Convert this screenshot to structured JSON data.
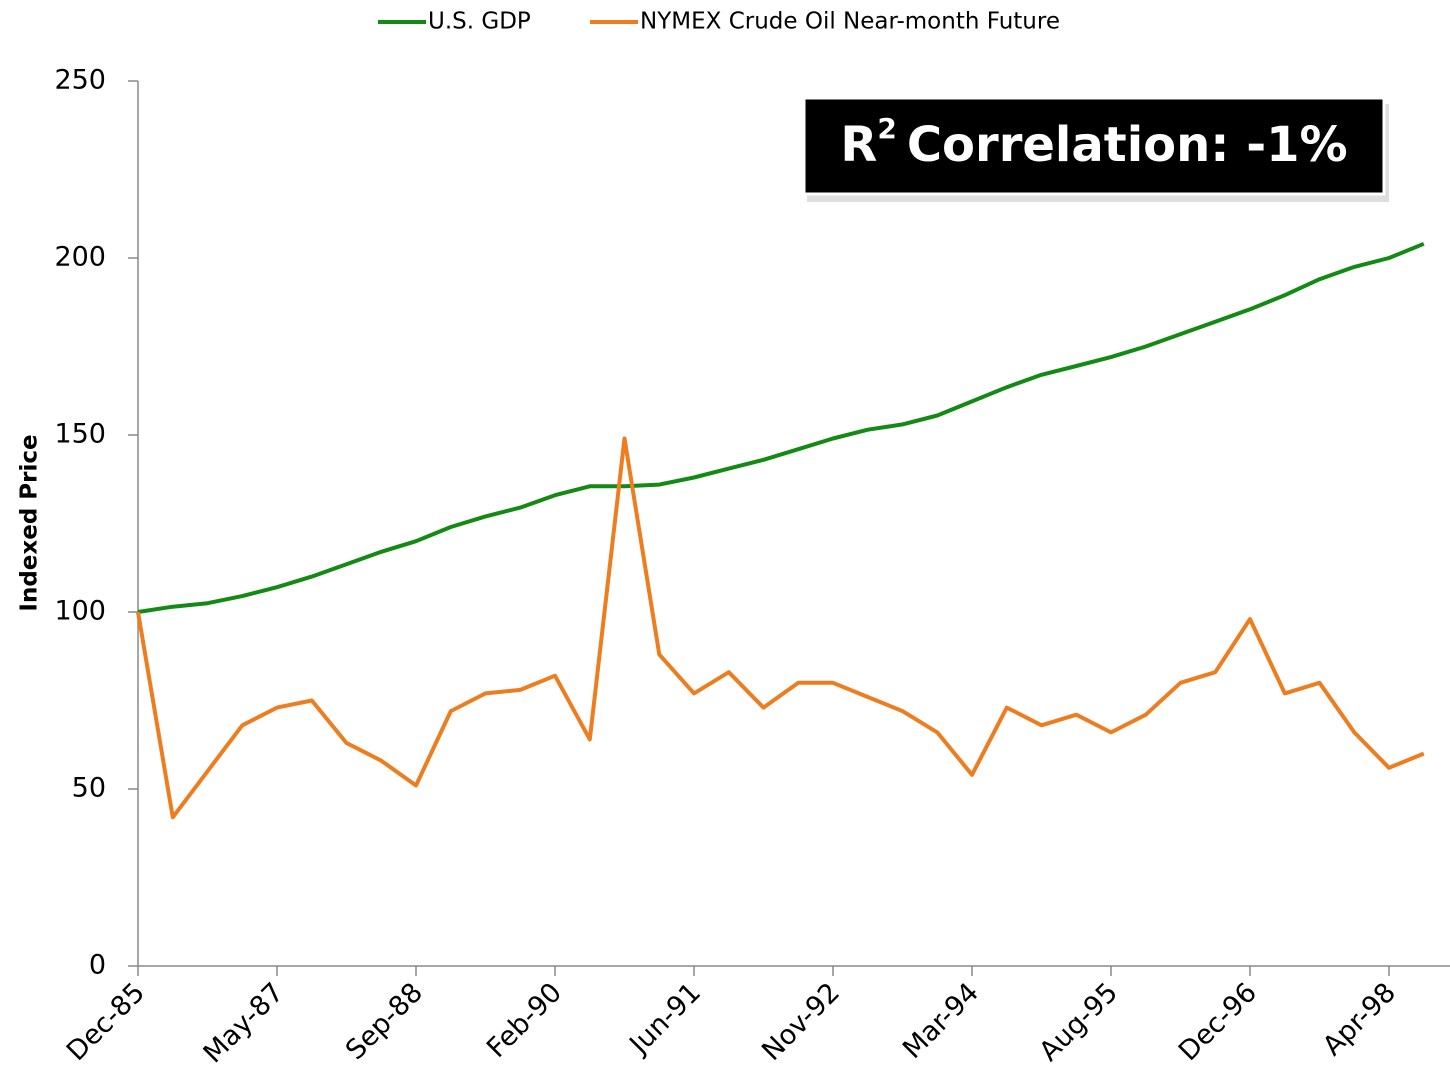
{
  "chart_data": {
    "type": "line",
    "ylabel": "Indexed Price",
    "annotation": {
      "base": "R",
      "sup": "2",
      "text": "Correlation: -1%"
    },
    "categories": [
      "Dec-85",
      null,
      null,
      null,
      "May-87",
      null,
      null,
      null,
      "Sep-88",
      null,
      null,
      null,
      "Feb-90",
      null,
      null,
      null,
      "Jun-91",
      null,
      null,
      null,
      "Nov-92",
      null,
      null,
      null,
      "Mar-94",
      null,
      null,
      null,
      "Aug-95",
      null,
      null,
      null,
      "Dec-96",
      null,
      null,
      null,
      "Apr-98",
      null
    ],
    "series": [
      {
        "name": "U.S. GDP",
        "color": "#138a13",
        "values": [
          100,
          101.5,
          102.5,
          104.5,
          107,
          110,
          113.5,
          117,
          120,
          124,
          127,
          129.5,
          133,
          135.5,
          135.5,
          136,
          138,
          140.5,
          143,
          146,
          149,
          151.5,
          153,
          155.5,
          159.5,
          163.5,
          167,
          169.5,
          172,
          175,
          178.5,
          182,
          185.5,
          189.5,
          194,
          197.5,
          200,
          204
        ]
      },
      {
        "name": "NYMEX Crude Oil Near-month Future",
        "color": "#ed7d1f",
        "values": [
          100,
          42,
          55,
          68,
          73,
          75,
          63,
          58,
          51,
          72,
          77,
          78,
          82,
          64,
          149,
          88,
          77,
          83,
          73,
          80,
          80,
          76,
          72,
          66,
          54,
          73,
          68,
          71,
          66,
          71,
          80,
          83,
          98,
          77,
          80,
          66,
          56,
          60
        ]
      }
    ],
    "ylim": [
      0,
      250
    ],
    "yticks": [
      0,
      50,
      100,
      150,
      200,
      250
    ],
    "legend": "top"
  }
}
